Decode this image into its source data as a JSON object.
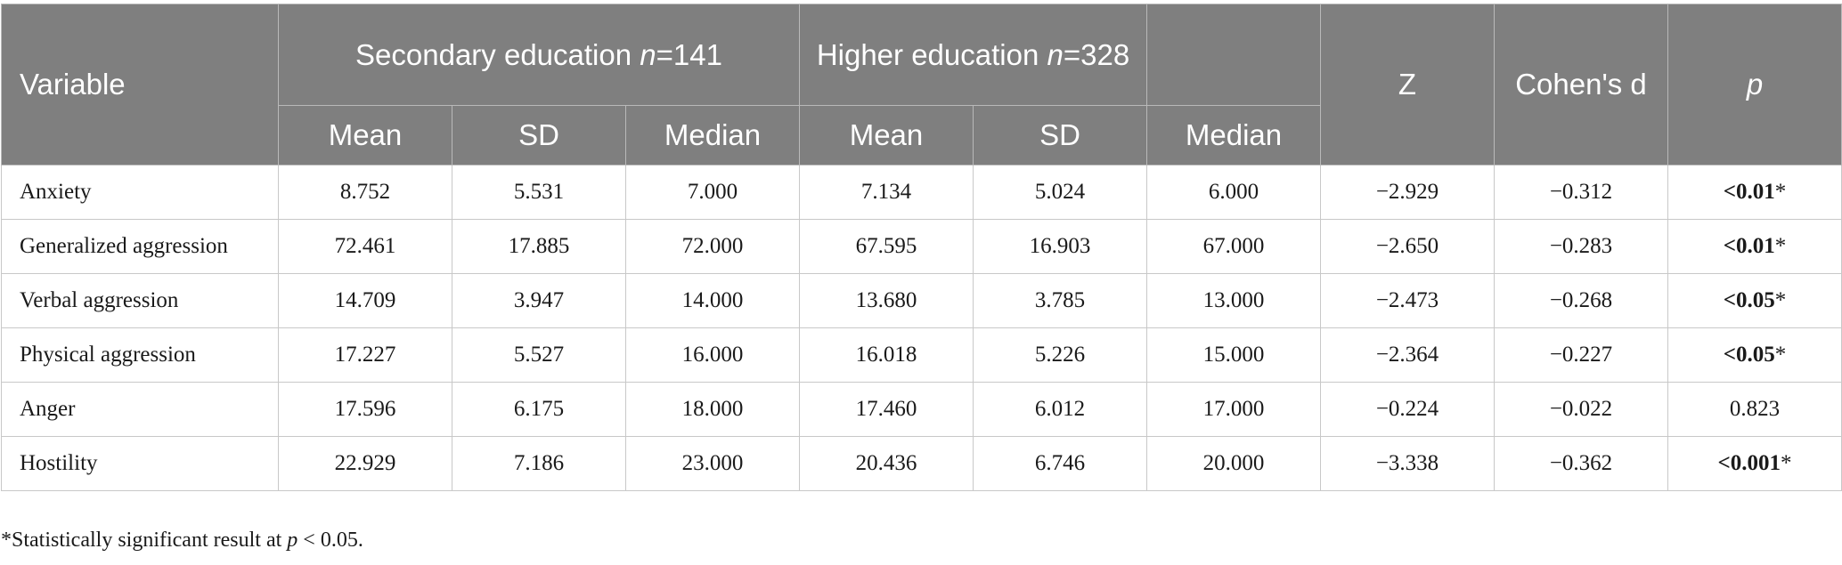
{
  "table": {
    "header": {
      "variable": "Variable",
      "groups": [
        [
          {
            "text": "Secondary education "
          },
          {
            "text": "n",
            "italic": true
          },
          {
            "text": "=141"
          }
        ],
        [
          {
            "text": "Higher education "
          },
          {
            "text": "n",
            "italic": true
          },
          {
            "text": "=328"
          }
        ]
      ],
      "subcolumns": [
        [
          "Mean",
          "SD",
          "Median"
        ],
        [
          "Mean",
          "SD",
          "Median"
        ]
      ],
      "z": "Z",
      "cohen": "Cohen's d",
      "p": [
        {
          "text": "p",
          "italic": true
        }
      ]
    },
    "rows": [
      [
        "Anxiety",
        "8.752",
        "5.531",
        "7.000",
        "7.134",
        "5.024",
        "6.000",
        "−2.929",
        "−0.312",
        [
          "<0.01",
          "*"
        ]
      ],
      [
        "Generalized aggression",
        "72.461",
        "17.885",
        "72.000",
        "67.595",
        "16.903",
        "67.000",
        "−2.650",
        "−0.283",
        [
          "<0.01",
          "*"
        ]
      ],
      [
        "Verbal aggression",
        "14.709",
        "3.947",
        "14.000",
        "13.680",
        "3.785",
        "13.000",
        "−2.473",
        "−0.268",
        [
          "<0.05",
          "*"
        ]
      ],
      [
        "Physical aggression",
        "17.227",
        "5.527",
        "16.000",
        "16.018",
        "5.226",
        "15.000",
        "−2.364",
        "−0.227",
        [
          "<0.05",
          "*"
        ]
      ],
      [
        "Anger",
        "17.596",
        "6.175",
        "18.000",
        "17.460",
        "6.012",
        "17.000",
        "−0.224",
        "−0.022",
        [
          "0.823"
        ]
      ],
      [
        "Hostility",
        "22.929",
        "7.186",
        "23.000",
        "20.436",
        "6.746",
        "20.000",
        "−3.338",
        "−0.362",
        [
          "<0.001",
          "*"
        ]
      ]
    ]
  },
  "footnote": [
    {
      "text": "*Statistically significant result at "
    },
    {
      "text": "p",
      "italic": true
    },
    {
      "text": " < 0.05."
    }
  ]
}
